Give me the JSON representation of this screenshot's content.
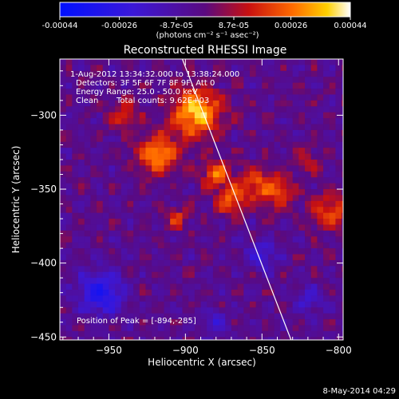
{
  "colorbar": {
    "tick_labels": [
      "-0.00044",
      "-0.00026",
      "-8.7e-05",
      "8.7e-05",
      "0.00026",
      "0.00044"
    ],
    "tick_values": [
      -0.00044,
      -0.00026,
      -8.7e-05,
      8.7e-05,
      0.00026,
      0.00044
    ],
    "units": "(photons cm⁻² s⁻¹ asec⁻²)",
    "range": [
      -0.00044,
      0.00044
    ]
  },
  "info": {
    "time": "1-Aug-2012 13:34:32.000 to 13:38:24.000",
    "detectors": "Detectors: 3F 5F 6F 7F 8F 9F, Att 0",
    "energy": "Energy Range: 25.0 - 50.0 keV",
    "clean_label": "Clean",
    "counts": "Total counts: 9.62E+03",
    "peak": "Position of Peak = [-894,-285]"
  },
  "footer": {
    "date": "8-May-2014 04:29"
  },
  "chart_data": {
    "type": "heatmap",
    "title": "Reconstructed RHESSI Image",
    "xlabel": "Heliocentric X (arcsec)",
    "ylabel": "Heliocentric Y (arcsec)",
    "xlim": [
      -982,
      -797
    ],
    "ylim": [
      -452,
      -262
    ],
    "x_ticks": [
      -950,
      -900,
      -850,
      -800
    ],
    "y_ticks": [
      -300,
      -350,
      -400,
      -450
    ],
    "x_tick_labels": [
      "−950",
      "−900",
      "−850",
      "−800"
    ],
    "y_tick_labels": [
      "−300",
      "−350",
      "−400",
      "−450"
    ],
    "limb_line": [
      [
        -902,
        -262
      ],
      [
        -831,
        -452
      ]
    ],
    "peak": [
      -894,
      -285
    ],
    "grid": false,
    "colormap": "blue-purple-red-yellow-white",
    "hot_regions": [
      {
        "x": -918,
        "y": -327,
        "r": 13,
        "value": 0.00036
      },
      {
        "x": -893,
        "y": -298,
        "r": 16,
        "value": 0.0004
      },
      {
        "x": -880,
        "y": -340,
        "r": 9,
        "value": 0.00028
      },
      {
        "x": -870,
        "y": -358,
        "r": 10,
        "value": 0.00024
      },
      {
        "x": -855,
        "y": -345,
        "r": 12,
        "value": 0.0002
      },
      {
        "x": -840,
        "y": -352,
        "r": 11,
        "value": 0.00022
      },
      {
        "x": -805,
        "y": -365,
        "r": 12,
        "value": 0.00025
      },
      {
        "x": -940,
        "y": -300,
        "r": 10,
        "value": 0.00018
      },
      {
        "x": -905,
        "y": -370,
        "r": 8,
        "value": 0.00018
      },
      {
        "x": -820,
        "y": -330,
        "r": 9,
        "value": 0.00012
      }
    ],
    "cold_regions": [
      {
        "x": -955,
        "y": -420,
        "r": 14,
        "value": -0.0003
      },
      {
        "x": -850,
        "y": -395,
        "r": 10,
        "value": -0.0002
      },
      {
        "x": -820,
        "y": -425,
        "r": 9,
        "value": -0.00018
      },
      {
        "x": -880,
        "y": -440,
        "r": 8,
        "value": -0.00016
      }
    ]
  }
}
